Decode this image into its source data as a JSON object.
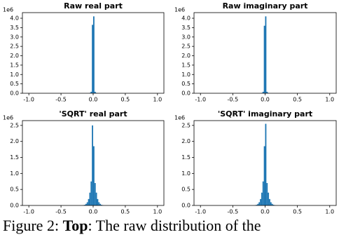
{
  "chart_data": [
    {
      "type": "histogram",
      "title": "Raw real part",
      "color": "#1f77b4",
      "bins": [
        -0.06,
        -0.04,
        -0.02,
        0,
        0.02,
        0.04,
        0.06
      ],
      "values": [
        0.02,
        0.08,
        3.65,
        4.1,
        0.08,
        0.02
      ],
      "xlim": [
        -1.1,
        1.1
      ],
      "xticks": [
        {
          "value": -1,
          "label": "-1.0"
        },
        -0.5,
        {
          "value": 0,
          "label": "0.0"
        },
        0.5,
        {
          "value": 1,
          "label": "1.0"
        }
      ],
      "ylim": [
        0,
        4.3
      ],
      "yticks": [
        {
          "value": 0,
          "label": "0.0"
        },
        0.5,
        {
          "value": 1,
          "label": "1.0"
        },
        1.5,
        {
          "value": 2,
          "label": "2.0"
        },
        2.5,
        {
          "value": 3,
          "label": "3.0"
        },
        3.5,
        {
          "value": 4,
          "label": "4.0"
        }
      ],
      "y_offset_label": "1e6"
    },
    {
      "type": "histogram",
      "title": "Raw imaginary part",
      "color": "#1f77b4",
      "bins": [
        -0.06,
        -0.04,
        -0.02,
        0,
        0.02,
        0.04,
        0.06
      ],
      "values": [
        0.02,
        0.08,
        3.6,
        4.1,
        0.08,
        0.02
      ],
      "xlim": [
        -1.1,
        1.1
      ],
      "xticks": [
        {
          "value": -1,
          "label": "-1.0"
        },
        -0.5,
        {
          "value": 0,
          "label": "0.0"
        },
        0.5,
        {
          "value": 1,
          "label": "1.0"
        }
      ],
      "ylim": [
        0,
        4.3
      ],
      "yticks": [
        {
          "value": 0,
          "label": "0.0"
        },
        0.5,
        {
          "value": 1,
          "label": "1.0"
        },
        1.5,
        {
          "value": 2,
          "label": "2.0"
        },
        2.5,
        {
          "value": 3,
          "label": "3.0"
        },
        3.5,
        {
          "value": 4,
          "label": "4.0"
        }
      ],
      "y_offset_label": "1e6"
    },
    {
      "type": "histogram",
      "title": "'SQRT' real part",
      "color": "#1f77b4",
      "bins": [
        -0.16,
        -0.14,
        -0.12,
        -0.1,
        -0.08,
        -0.06,
        -0.04,
        -0.02,
        0,
        0.02,
        0.04,
        0.06,
        0.08,
        0.1,
        0.12,
        0.14,
        0.16
      ],
      "values": [
        0.01,
        0.02,
        0.05,
        0.1,
        0.2,
        0.4,
        0.75,
        2.5,
        1.85,
        0.7,
        0.4,
        0.2,
        0.1,
        0.05,
        0.02,
        0.01
      ],
      "xlim": [
        -1.1,
        1.1
      ],
      "xticks": [
        {
          "value": -1,
          "label": "-1.0"
        },
        -0.5,
        {
          "value": 0,
          "label": "0.0"
        },
        0.5,
        {
          "value": 1,
          "label": "1.0"
        }
      ],
      "ylim": [
        0,
        2.65
      ],
      "yticks": [
        {
          "value": 0,
          "label": "0.0"
        },
        0.5,
        {
          "value": 1,
          "label": "1.0"
        },
        1.5,
        {
          "value": 2,
          "label": "2.0"
        },
        2.5
      ],
      "y_offset_label": "1e6"
    },
    {
      "type": "histogram",
      "title": "'SQRT' imaginary part",
      "color": "#1f77b4",
      "bins": [
        -0.16,
        -0.14,
        -0.12,
        -0.1,
        -0.08,
        -0.06,
        -0.04,
        -0.02,
        0,
        0.02,
        0.04,
        0.06,
        0.08,
        0.1,
        0.12,
        0.14,
        0.16
      ],
      "values": [
        0.01,
        0.02,
        0.05,
        0.1,
        0.2,
        0.4,
        0.75,
        1.85,
        2.55,
        0.7,
        0.4,
        0.2,
        0.1,
        0.05,
        0.02,
        0.01
      ],
      "xlim": [
        -1.1,
        1.1
      ],
      "xticks": [
        {
          "value": -1,
          "label": "-1.0"
        },
        -0.5,
        {
          "value": 0,
          "label": "0.0"
        },
        0.5,
        {
          "value": 1,
          "label": "1.0"
        }
      ],
      "ylim": [
        0,
        2.65
      ],
      "yticks": [
        {
          "value": 0,
          "label": "0.0"
        },
        0.5,
        {
          "value": 1,
          "label": "1.0"
        },
        1.5,
        {
          "value": 2,
          "label": "2.0"
        },
        2.5
      ],
      "y_offset_label": "1e6"
    }
  ],
  "caption": {
    "label": "Figure 2:",
    "bold": "Top",
    "text": ": The raw distribution of the"
  }
}
